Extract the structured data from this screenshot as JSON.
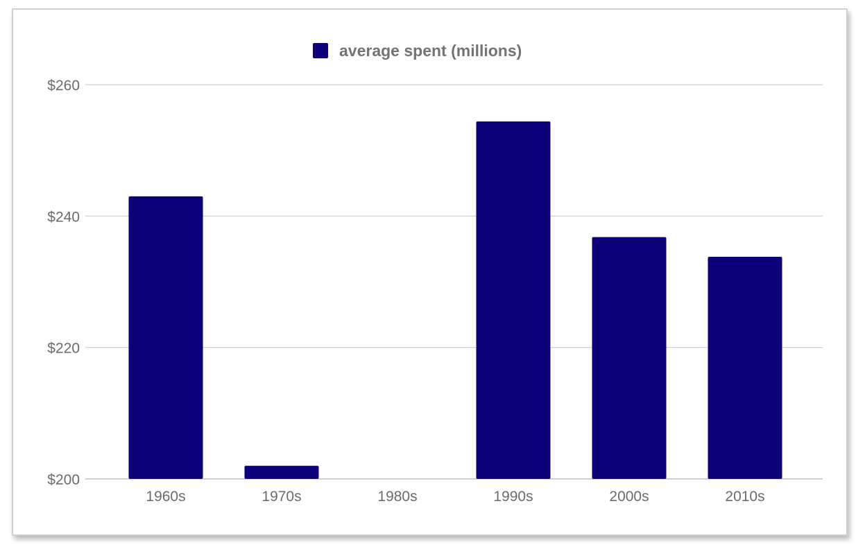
{
  "chart_data": {
    "type": "bar",
    "categories": [
      "1960s",
      "1970s",
      "1980s",
      "1990s",
      "2000s",
      "2010s"
    ],
    "series": [
      {
        "name": "average spent (millions)",
        "values": [
          243,
          202,
          null,
          254.4,
          236.8,
          233.8
        ],
        "color": "#0b007a"
      }
    ],
    "ylim": [
      200,
      260
    ],
    "yticks": [
      200,
      220,
      240,
      260
    ],
    "ytick_labels": [
      "$200",
      "$220",
      "$240",
      "$260"
    ],
    "grid": true,
    "legend_position": "top-center",
    "title": "",
    "xlabel": "",
    "ylabel": ""
  }
}
